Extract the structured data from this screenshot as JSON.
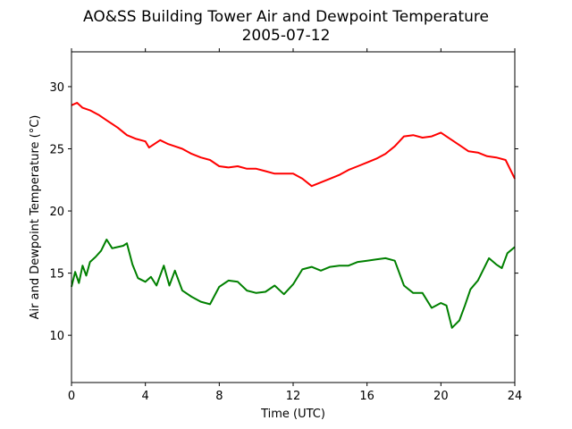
{
  "chart_data": {
    "type": "line",
    "title": "AO&SS Building Tower Air and Dewpoint Temperature",
    "subtitle": "2005-07-12",
    "xlabel": "Time (UTC)",
    "ylabel": "Air and Dewpoint Temperature (°C)",
    "xlim": [
      0,
      24
    ],
    "ylim": [
      6.2,
      32.8
    ],
    "xticks": [
      0,
      4,
      8,
      12,
      16,
      20,
      24
    ],
    "yticks": [
      10,
      15,
      20,
      25,
      30
    ],
    "grid": false,
    "legend": "none",
    "series": [
      {
        "color": "#ff0000",
        "x": [
          0,
          0.3,
          0.6,
          1,
          1.5,
          2,
          2.5,
          3,
          3.5,
          4,
          4.2,
          4.5,
          4.8,
          5.2,
          5.6,
          6,
          6.5,
          7,
          7.5,
          8,
          8.5,
          9,
          9.5,
          10,
          10.5,
          11,
          11.5,
          12,
          12.5,
          13,
          13.5,
          14,
          14.5,
          15,
          15.5,
          16,
          16.5,
          17,
          17.5,
          18,
          18.5,
          19,
          19.5,
          20,
          20.5,
          21,
          21.5,
          22,
          22.5,
          23,
          23.5,
          24
        ],
        "y": [
          28.5,
          28.7,
          28.3,
          28.1,
          27.7,
          27.2,
          26.7,
          26.1,
          25.8,
          25.6,
          25.1,
          25.4,
          25.7,
          25.4,
          25.2,
          25.0,
          24.6,
          24.3,
          24.1,
          23.6,
          23.5,
          23.6,
          23.4,
          23.4,
          23.2,
          23.0,
          23.0,
          23.0,
          22.6,
          22.0,
          22.3,
          22.6,
          22.9,
          23.3,
          23.6,
          23.9,
          24.2,
          24.6,
          25.2,
          26.0,
          26.1,
          25.9,
          26.0,
          26.3,
          25.8,
          25.3,
          24.8,
          24.7,
          24.4,
          24.3,
          24.1,
          22.6
        ]
      },
      {
        "color": "#008000",
        "x": [
          0,
          0.2,
          0.4,
          0.6,
          0.8,
          1,
          1.3,
          1.6,
          1.9,
          2.2,
          2.5,
          2.8,
          3,
          3.3,
          3.6,
          4,
          4.3,
          4.6,
          5,
          5.3,
          5.6,
          6,
          6.5,
          7,
          7.5,
          8,
          8.5,
          9,
          9.5,
          10,
          10.5,
          11,
          11.5,
          12,
          12.5,
          13,
          13.5,
          14,
          14.5,
          15,
          15.5,
          16,
          16.5,
          17,
          17.5,
          18,
          18.5,
          19,
          19.5,
          20,
          20.3,
          20.6,
          21,
          21.3,
          21.6,
          22,
          22.3,
          22.6,
          23,
          23.3,
          23.6,
          24
        ],
        "y": [
          13.9,
          15.1,
          14.2,
          15.6,
          14.8,
          15.9,
          16.3,
          16.8,
          17.7,
          17.0,
          17.1,
          17.2,
          17.4,
          15.7,
          14.6,
          14.3,
          14.7,
          14.0,
          15.6,
          14.0,
          15.2,
          13.6,
          13.1,
          12.7,
          12.5,
          13.9,
          14.4,
          14.3,
          13.6,
          13.4,
          13.5,
          14.0,
          13.3,
          14.1,
          15.3,
          15.5,
          15.2,
          15.5,
          15.6,
          15.6,
          15.9,
          16.0,
          16.1,
          16.2,
          16.0,
          14.0,
          13.4,
          13.4,
          12.2,
          12.6,
          12.4,
          10.6,
          11.2,
          12.4,
          13.7,
          14.4,
          15.3,
          16.2,
          15.7,
          15.4,
          16.6,
          17.1
        ]
      }
    ]
  }
}
